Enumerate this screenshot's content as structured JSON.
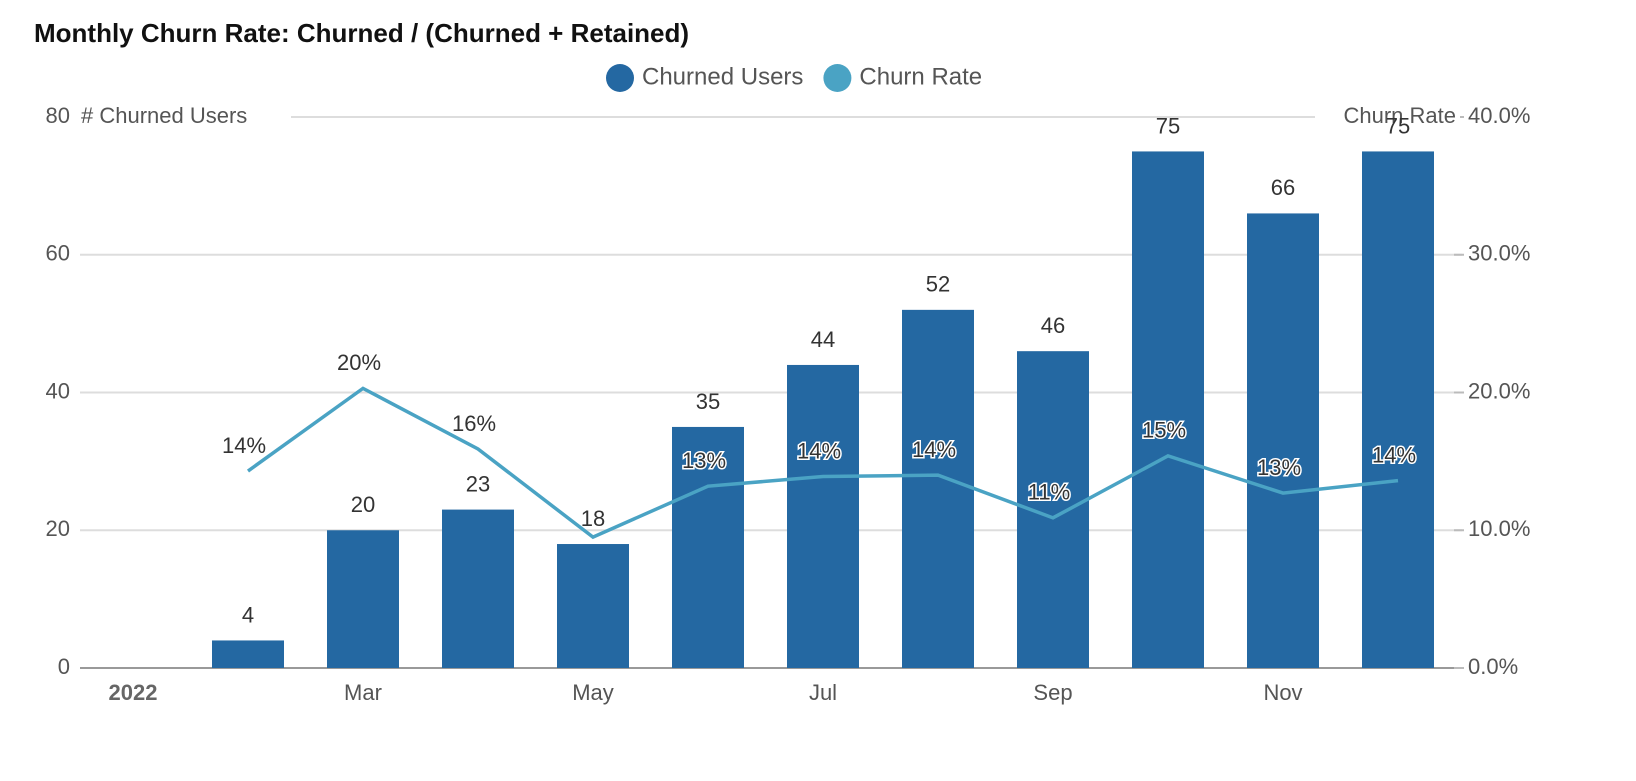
{
  "chart_data": {
    "type": "bar-line",
    "title": "Monthly Churn Rate: Churned / (Churned + Retained)",
    "y_label": "# Churned Users",
    "y2_label": "Churn Rate",
    "categories": [
      "2022",
      null,
      "Mar",
      null,
      "May",
      null,
      "Jul",
      null,
      "Sep",
      null,
      "Nov",
      null
    ],
    "series": [
      {
        "name": "Churned Users",
        "type": "bar",
        "color": "#2468a2",
        "values": [
          null,
          4,
          20,
          23,
          18,
          35,
          44,
          52,
          46,
          75,
          66,
          75
        ]
      },
      {
        "name": "Churn Rate",
        "type": "line",
        "color": "#4aa3c4",
        "axis": "y2",
        "values": [
          null,
          14.3,
          20.3,
          15.9,
          9.5,
          13.2,
          13.9,
          14.0,
          10.9,
          15.4,
          12.7,
          13.6
        ],
        "value_labels": [
          null,
          "14%",
          "20%",
          "16%",
          null,
          "13%",
          "14%",
          "14%",
          "11%",
          "15%",
          "13%",
          "14%"
        ]
      }
    ],
    "ylim": [
      0,
      80
    ],
    "yticks": [
      0,
      20,
      40,
      60,
      80
    ],
    "y2lim": [
      0,
      40
    ],
    "y2ticks": [
      {
        "value": 0,
        "label": "0.0%"
      },
      {
        "value": 10,
        "label": "10.0%"
      },
      {
        "value": 20,
        "label": "20.0%"
      },
      {
        "value": 30,
        "label": "30.0%"
      },
      {
        "value": 40,
        "label": "40.0%"
      }
    ],
    "grid": true,
    "legend": "top"
  }
}
